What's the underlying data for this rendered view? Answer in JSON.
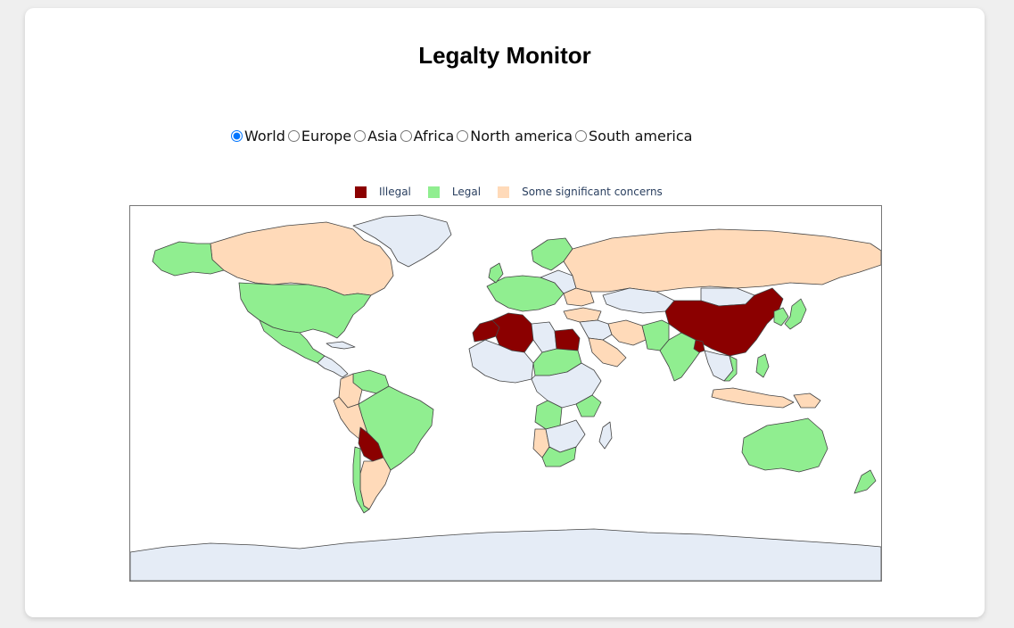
{
  "page": {
    "title": "Legalty Monitor"
  },
  "region_selector": {
    "selected": "World",
    "options": [
      "World",
      "Europe",
      "Asia",
      "Africa",
      "North america",
      "South america"
    ]
  },
  "legend": {
    "items": [
      {
        "label": "Illegal",
        "color": "#8b0000"
      },
      {
        "label": "Legal",
        "color": "#90ee90"
      },
      {
        "label": "Some significant concerns",
        "color": "#ffdab9"
      }
    ]
  },
  "map": {
    "no_data_color": "#e5ecf6",
    "ocean_color": "#ffffff",
    "categories": {
      "Illegal": [
        "China",
        "Bolivia",
        "Algeria",
        "Morocco",
        "Egypt",
        "Bangladesh"
      ],
      "Legal": [
        "United States",
        "Mexico",
        "Alaska",
        "Greenland-excluded",
        "Brazil",
        "Chile",
        "Venezuela",
        "Colombia-partial",
        "Australia",
        "New Zealand",
        "Japan",
        "South Korea",
        "India",
        "Nepal",
        "Thailand-region",
        "Philippines",
        "Vietnam",
        "Scandinavia",
        "Western Europe",
        "Kenya",
        "South Africa",
        "Angola",
        "Ethiopia-region",
        "Sudan-region"
      ],
      "Some significant concerns": [
        "Canada",
        "Russia",
        "Argentina",
        "Peru",
        "Colombia",
        "Saudi Arabia",
        "Iran",
        "Mongolia",
        "Turkey",
        "Indonesia",
        "Papua New Guinea",
        "Namibia",
        "Ukraine"
      ]
    }
  }
}
